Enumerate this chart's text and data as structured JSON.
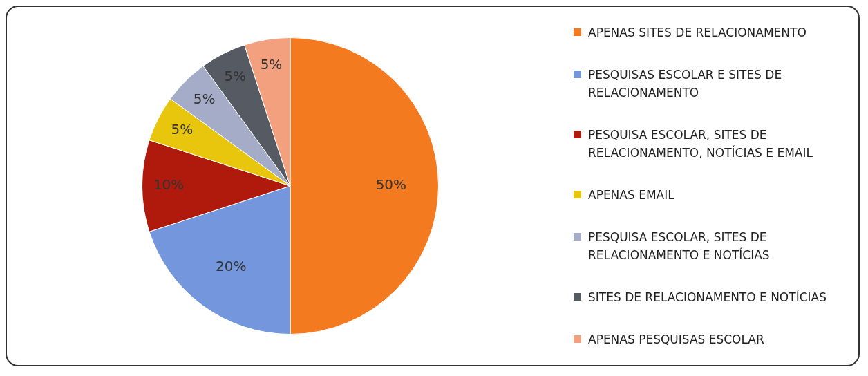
{
  "chart_data": {
    "type": "pie",
    "categories": [
      "APENAS SITES DE RELACIONAMENTO",
      "PESQUISAS ESCOLAR E SITES DE RELACIONAMENTO",
      "PESQUISA ESCOLAR, SITES DE RELACIONAMENTO, NOTÍCIAS E EMAIL",
      "APENAS EMAIL",
      "PESQUISA ESCOLAR, SITES DE RELACIONAMENTO E NOTÍCIAS",
      "SITES DE RELACIONAMENTO E NOTÍCIAS",
      "APENAS PESQUISAS ESCOLAR"
    ],
    "values": [
      50,
      20,
      10,
      5,
      5,
      5,
      5
    ],
    "colors": [
      "#f47a20",
      "#7396dc",
      "#b01a0c",
      "#e8c60e",
      "#a4acc8",
      "#565b63",
      "#f2a07e"
    ],
    "value_labels": [
      "50%",
      "20%",
      "10%",
      "5%",
      "5%",
      "5%",
      "5%"
    ],
    "legend": "right"
  }
}
